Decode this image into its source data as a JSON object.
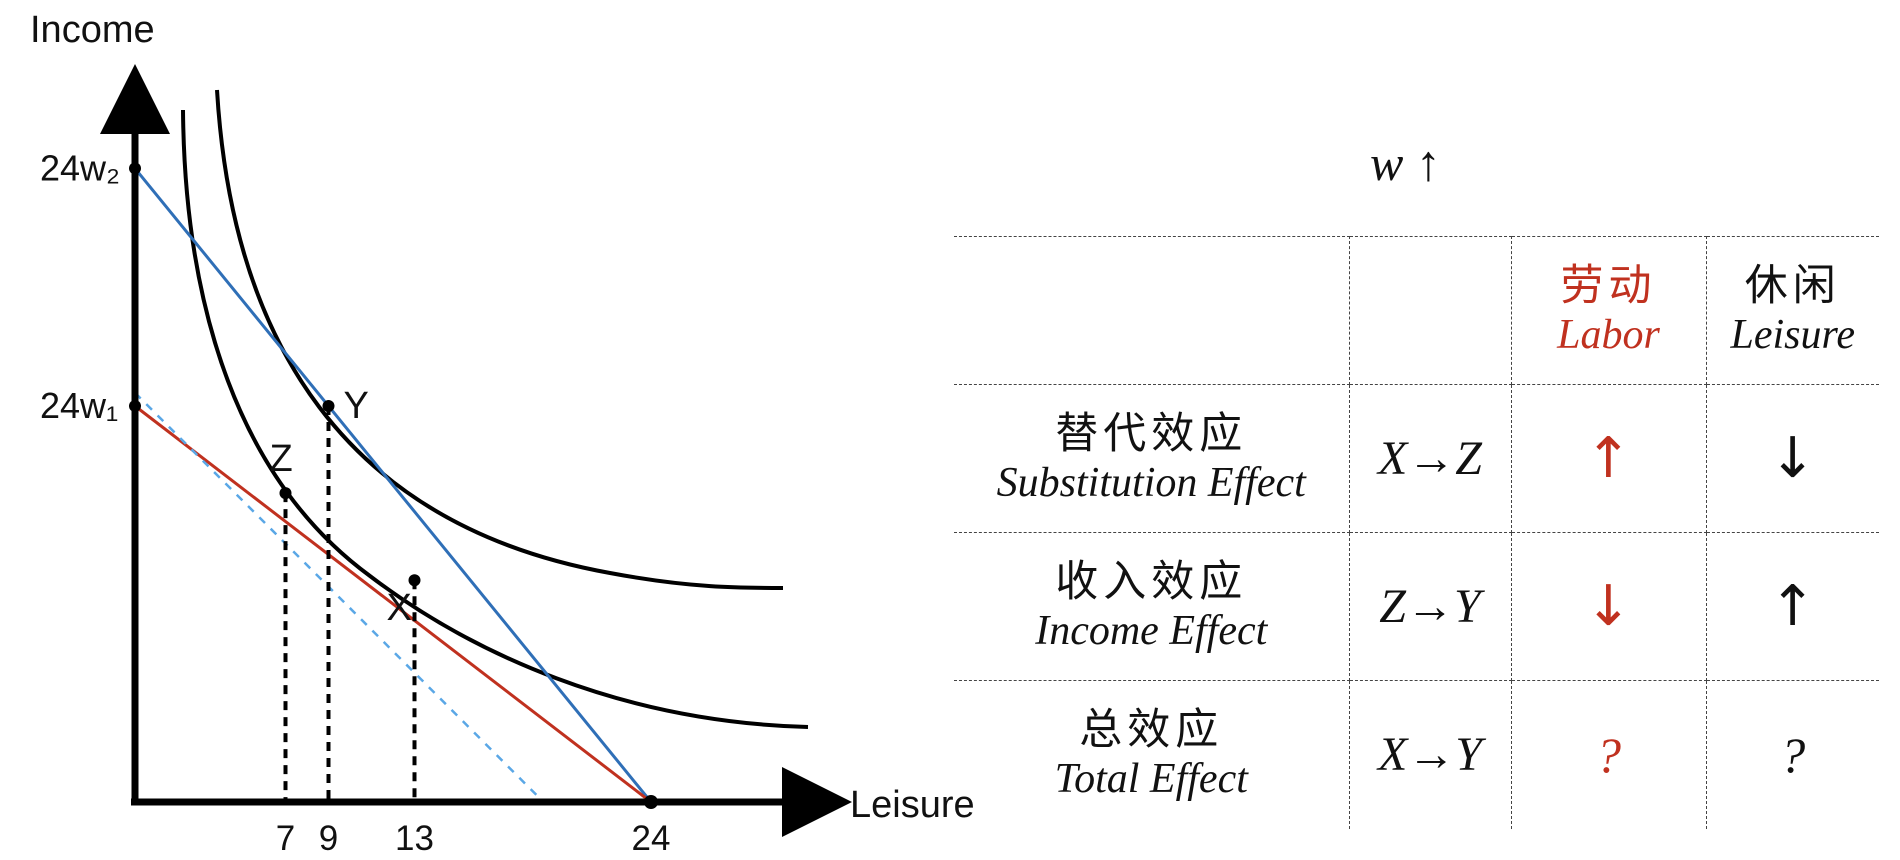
{
  "graph": {
    "y_axis_label": "Income",
    "x_axis_label": "Leisure",
    "y_ticks": [
      {
        "label": "24w₂",
        "income": 24
      },
      {
        "label": "24w₁",
        "income": 15
      }
    ],
    "x_ticks": [
      {
        "label": "7",
        "leisure": 7
      },
      {
        "label": "9",
        "leisure": 9
      },
      {
        "label": "13",
        "leisure": 13
      },
      {
        "label": "24",
        "leisure": 24
      }
    ],
    "points": [
      {
        "label": "Z",
        "leisure": 7,
        "income": 11.7
      },
      {
        "label": "Y",
        "leisure": 9,
        "income": 15
      },
      {
        "label": "X",
        "leisure": 13,
        "income": 8.4
      }
    ],
    "colors": {
      "original_budget": "#c0311f",
      "new_budget": "#2f6fb7",
      "compensated_budget": "#5aa7e6",
      "indifference_curves": "#000000",
      "axes": "#000000"
    }
  },
  "table": {
    "title": "w ↑",
    "headers": {
      "labor_cn": "劳动",
      "labor_en": "Labor",
      "leisure_cn": "休闲",
      "leisure_en": "Leisure"
    },
    "rows": [
      {
        "name_cn": "替代效应",
        "name_en": "Substitution Effect",
        "transition": "X→Z",
        "labor": "↑",
        "leisure": "↓"
      },
      {
        "name_cn": "收入效应",
        "name_en": "Income Effect",
        "transition": "Z→Y",
        "labor": "↓",
        "leisure": "↑"
      },
      {
        "name_cn": "总效应",
        "name_en": "Total Effect",
        "transition": "X→Y",
        "labor": "?",
        "leisure": "?"
      }
    ],
    "colors": {
      "labor": "#c0311f",
      "leisure": "#111111"
    }
  }
}
